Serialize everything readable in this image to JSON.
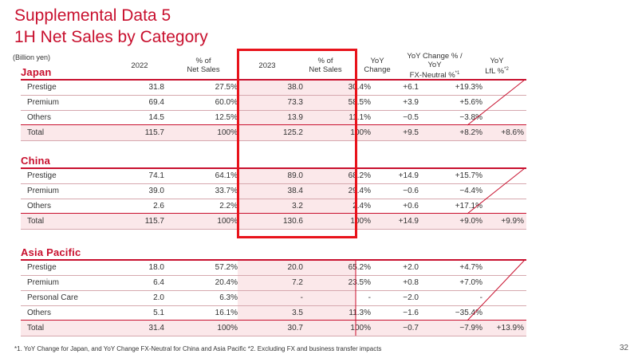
{
  "title_line1": "Supplemental Data 5",
  "title_line2": "1H Net Sales by Category",
  "unit": "(Billion yen)",
  "headers": {
    "y2022": "2022",
    "share2022_l1": "% of",
    "share2022_l2": "Net Sales",
    "y2023": "2023",
    "share2023_l1": "% of",
    "share2023_l2": "Net Sales",
    "yoy_l1": "YoY",
    "yoy_l2": "Change",
    "fx_l1": "YoY Change % /",
    "fx_l2": "YoY",
    "fx_l3": "FX-Neutral %",
    "fx_sup": "*1",
    "lfl_l1": "YoY",
    "lfl_l2": "LfL %",
    "lfl_sup": "*2"
  },
  "sections": [
    {
      "name": "Japan",
      "rows": [
        {
          "label": "Prestige",
          "v2022": "31.8",
          "p2022": "27.5%",
          "v2023": "38.0",
          "p2023": "30.4%",
          "yoy": "+6.1",
          "fx": "+19.3%",
          "lfl": ""
        },
        {
          "label": "Premium",
          "v2022": "69.4",
          "p2022": "60.0%",
          "v2023": "73.3",
          "p2023": "58.5%",
          "yoy": "+3.9",
          "fx": "+5.6%",
          "lfl": ""
        },
        {
          "label": "Others",
          "v2022": "14.5",
          "p2022": "12.5%",
          "v2023": "13.9",
          "p2023": "11.1%",
          "yoy": "−0.5",
          "fx": "−3.8%",
          "lfl": ""
        }
      ],
      "total": {
        "label": "Total",
        "v2022": "115.7",
        "p2022": "100%",
        "v2023": "125.2",
        "p2023": "100%",
        "yoy": "+9.5",
        "fx": "+8.2%",
        "lfl": "+8.6%"
      }
    },
    {
      "name": "China",
      "rows": [
        {
          "label": "Prestige",
          "v2022": "74.1",
          "p2022": "64.1%",
          "v2023": "89.0",
          "p2023": "68.2%",
          "yoy": "+14.9",
          "fx": "+15.7%",
          "lfl": ""
        },
        {
          "label": "Premium",
          "v2022": "39.0",
          "p2022": "33.7%",
          "v2023": "38.4",
          "p2023": "29.4%",
          "yoy": "−0.6",
          "fx": "−4.4%",
          "lfl": ""
        },
        {
          "label": "Others",
          "v2022": "2.6",
          "p2022": "2.2%",
          "v2023": "3.2",
          "p2023": "2.4%",
          "yoy": "+0.6",
          "fx": "+17.1%",
          "lfl": ""
        }
      ],
      "total": {
        "label": "Total",
        "v2022": "115.7",
        "p2022": "100%",
        "v2023": "130.6",
        "p2023": "100%",
        "yoy": "+14.9",
        "fx": "+9.0%",
        "lfl": "+9.9%"
      }
    },
    {
      "name": "Asia Pacific",
      "rows": [
        {
          "label": "Prestige",
          "v2022": "18.0",
          "p2022": "57.2%",
          "v2023": "20.0",
          "p2023": "65.2%",
          "yoy": "+2.0",
          "fx": "+4.7%",
          "lfl": ""
        },
        {
          "label": "Premium",
          "v2022": "6.4",
          "p2022": "20.4%",
          "v2023": "7.2",
          "p2023": "23.5%",
          "yoy": "+0.8",
          "fx": "+7.0%",
          "lfl": ""
        },
        {
          "label": "Personal Care",
          "v2022": "2.0",
          "p2022": "6.3%",
          "v2023": "-",
          "p2023": "-",
          "yoy": "−2.0",
          "fx": "-",
          "lfl": ""
        },
        {
          "label": "Others",
          "v2022": "5.1",
          "p2022": "16.1%",
          "v2023": "3.5",
          "p2023": "11.3%",
          "yoy": "−1.6",
          "fx": "−35.4%",
          "lfl": ""
        }
      ],
      "total": {
        "label": "Total",
        "v2022": "31.4",
        "p2022": "100%",
        "v2023": "30.7",
        "p2023": "100%",
        "yoy": "−0.7",
        "fx": "−7.9%",
        "lfl": "+13.9%"
      }
    }
  ],
  "footnote": "*1. YoY Change for Japan, and YoY Change FX-Neutral for China and Asia Pacific    *2. Excluding FX and business transfer impacts",
  "page_number": "32",
  "colors": {
    "accent": "#c8102e",
    "highlight": "#fbe8ea",
    "frame": "#e8131b"
  }
}
